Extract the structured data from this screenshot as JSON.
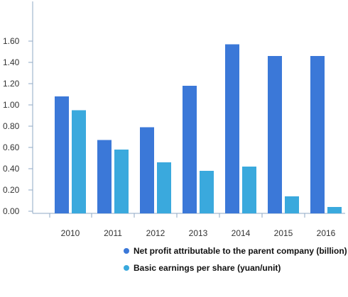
{
  "chart_data": {
    "type": "bar",
    "categories": [
      "2010",
      "2011",
      "2012",
      "2013",
      "2014",
      "2015",
      "2016"
    ],
    "series": [
      {
        "name": "Net profit attributable to the parent company (billion)",
        "color": "#3b78d8",
        "values": [
          1.08,
          0.67,
          0.79,
          1.18,
          1.57,
          1.46,
          1.46
        ]
      },
      {
        "name": "Basic earnings per share (yuan/unit)",
        "color": "#3aa9dd",
        "values": [
          0.95,
          0.58,
          0.46,
          0.38,
          0.42,
          0.14,
          0.04
        ]
      }
    ],
    "y_ticks": [
      "0.00",
      "0.20",
      "0.40",
      "0.60",
      "0.80",
      "1.00",
      "1.20",
      "1.40",
      "1.60"
    ],
    "ylim": [
      0,
      1.9
    ],
    "grid": false,
    "legend_position": "bottom-right",
    "title": "",
    "xlabel": "",
    "ylabel": ""
  }
}
